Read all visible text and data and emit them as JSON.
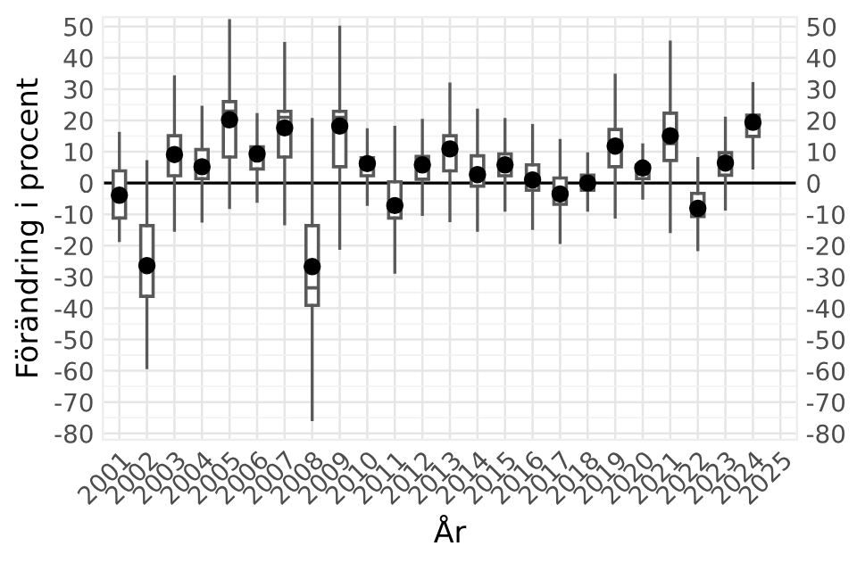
{
  "chart_data": {
    "type": "box",
    "xlabel": "År",
    "ylabel": "Förändring i procent",
    "categories": [
      "2001",
      "2002",
      "2003",
      "2004",
      "2005",
      "2006",
      "2007",
      "2008",
      "2009",
      "2010",
      "2011",
      "2012",
      "2013",
      "2014",
      "2015",
      "2016",
      "2017",
      "2018",
      "2019",
      "2020",
      "2021",
      "2022",
      "2023",
      "2024",
      "2025"
    ],
    "boxes": [
      {
        "low": -18.4,
        "q1": -11.2,
        "median": -4,
        "q3": 3.9,
        "high": 15.9,
        "mean": -3.9
      },
      {
        "low": -59,
        "q1": -36.2,
        "median": -26,
        "q3": -13.6,
        "high": 6.8,
        "mean": -26.4
      },
      {
        "low": -15.1,
        "q1": 2.3,
        "median": 9,
        "q3": 15.1,
        "high": 33.9,
        "mean": 9.1
      },
      {
        "low": -12.2,
        "q1": 1.4,
        "median": 5,
        "q3": 10.7,
        "high": 24.2,
        "mean": 5.2
      },
      {
        "low": -7.8,
        "q1": 8.3,
        "median": 23,
        "q3": 26,
        "high": 51.9,
        "mean": 20.2
      },
      {
        "low": -5.8,
        "q1": 4.5,
        "median": 9,
        "q3": 11.6,
        "high": 21.9,
        "mean": 9.3
      },
      {
        "low": -13,
        "q1": 8.3,
        "median": 21,
        "q3": 22.9,
        "high": 44.6,
        "mean": 17.6
      },
      {
        "low": -75.6,
        "q1": -39.1,
        "median": -33.5,
        "q3": -13.6,
        "high": 20.3,
        "mean": -26.7
      },
      {
        "low": -20.9,
        "q1": 5.2,
        "median": 21,
        "q3": 22.9,
        "high": 49.8,
        "mean": 18.2
      },
      {
        "low": -6.8,
        "q1": 2.3,
        "median": 6,
        "q3": 8.1,
        "high": 17,
        "mean": 6.2
      },
      {
        "low": -28.5,
        "q1": -11.2,
        "median": -7,
        "q3": 0.4,
        "high": 17.8,
        "mean": -7.2
      },
      {
        "low": -10,
        "q1": 1.2,
        "median": 6,
        "q3": 8.5,
        "high": 20,
        "mean": 5.8
      },
      {
        "low": -12,
        "q1": 3.9,
        "median": 11,
        "q3": 15.1,
        "high": 31.6,
        "mean": 10.9
      },
      {
        "low": -15.1,
        "q1": -1,
        "median": 2,
        "q3": 8.7,
        "high": 23.3,
        "mean": 2.7
      },
      {
        "low": -8.7,
        "q1": 2.3,
        "median": 6,
        "q3": 9.3,
        "high": 20.3,
        "mean": 5.8
      },
      {
        "low": -14.5,
        "q1": -2.3,
        "median": 1,
        "q3": 5.8,
        "high": 18.4,
        "mean": 1
      },
      {
        "low": -19,
        "q1": -6.8,
        "median": -5,
        "q3": 1.6,
        "high": 13.6,
        "mean": -3.5
      },
      {
        "low": -8.7,
        "q1": -2.3,
        "median": 0,
        "q3": 2.5,
        "high": 9.3,
        "mean": 0
      },
      {
        "low": -10.9,
        "q1": 5.2,
        "median": 10,
        "q3": 17.1,
        "high": 34.5,
        "mean": 11.8
      },
      {
        "low": -4.8,
        "q1": 1.4,
        "median": 5,
        "q3": 5.8,
        "high": 12.2,
        "mean": 4.8
      },
      {
        "low": -15.5,
        "q1": 7.2,
        "median": 12.6,
        "q3": 22.3,
        "high": 45,
        "mean": 15.1
      },
      {
        "low": -21.3,
        "q1": -10.7,
        "median": -8,
        "q3": -3.3,
        "high": 7.8,
        "mean": -8.1
      },
      {
        "low": -8.3,
        "q1": 2.5,
        "median": 6,
        "q3": 9.7,
        "high": 20.7,
        "mean": 6.4
      },
      {
        "low": 4.8,
        "q1": 14.9,
        "median": 20,
        "q3": 21.7,
        "high": 31.8,
        "mean": 19.4
      },
      null
    ],
    "color": "#595959",
    "ylim": [
      -82,
      53
    ],
    "yticks": [
      -80,
      -70,
      -60,
      -50,
      -40,
      -30,
      -20,
      -10,
      0,
      10,
      20,
      30,
      40,
      50
    ],
    "y2lim": [
      -82,
      53
    ],
    "y2ticks": [
      -80,
      -70,
      -60,
      -50,
      -40,
      -30,
      -20,
      -10,
      0,
      10,
      20,
      30,
      40,
      50
    ],
    "ref_lines": [
      {
        "axis": "y",
        "value": 0,
        "color": "#000000"
      }
    ],
    "grid": true,
    "legend": false
  }
}
